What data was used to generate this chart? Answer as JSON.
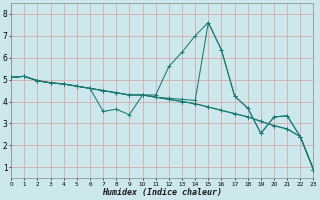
{
  "bg_color": "#cce8ec",
  "grid_color": "#b8d8dc",
  "line_color": "#1a7870",
  "xlabel": "Humidex (Indice chaleur)",
  "xlim": [
    0,
    23
  ],
  "ylim": [
    0.5,
    8.5
  ],
  "xtick_vals": [
    0,
    1,
    2,
    3,
    4,
    5,
    6,
    7,
    8,
    9,
    10,
    11,
    12,
    13,
    14,
    15,
    16,
    17,
    18,
    19,
    20,
    21,
    22,
    23
  ],
  "ytick_vals": [
    1,
    2,
    3,
    4,
    5,
    6,
    7,
    8
  ],
  "curve1_x": [
    0,
    1,
    2,
    3,
    4,
    5,
    6,
    7,
    8,
    9,
    10,
    11,
    12,
    13,
    14,
    15,
    16,
    17,
    18,
    19,
    20,
    21,
    22,
    23
  ],
  "curve1_y": [
    5.1,
    5.15,
    4.95,
    4.85,
    4.8,
    4.7,
    4.6,
    4.5,
    4.4,
    4.3,
    4.3,
    4.2,
    4.1,
    4.0,
    3.9,
    3.75,
    3.6,
    3.45,
    3.3,
    3.1,
    2.9,
    2.75,
    2.4,
    0.9
  ],
  "curve2_x": [
    0,
    1,
    2,
    3,
    4,
    5,
    6,
    7,
    8,
    9,
    10,
    11,
    12,
    13,
    14,
    15,
    16,
    17,
    18,
    19,
    20,
    21,
    22,
    23
  ],
  "curve2_y": [
    5.1,
    5.15,
    4.95,
    4.85,
    4.8,
    4.7,
    4.6,
    3.55,
    3.65,
    3.4,
    4.3,
    4.3,
    5.6,
    6.25,
    7.0,
    7.6,
    6.35,
    4.25,
    3.7,
    2.55,
    3.3,
    3.35,
    2.4,
    0.9
  ],
  "curve3_x": [
    0,
    1,
    2,
    3,
    4,
    5,
    6,
    7,
    8,
    9,
    10,
    11,
    12,
    13,
    14,
    15,
    16,
    17,
    18,
    19,
    20,
    21,
    22,
    23
  ],
  "curve3_y": [
    5.1,
    5.15,
    4.95,
    4.85,
    4.8,
    4.7,
    4.6,
    4.5,
    4.4,
    4.3,
    4.3,
    4.2,
    4.15,
    4.1,
    4.05,
    7.6,
    6.35,
    4.25,
    3.7,
    2.55,
    3.3,
    3.35,
    2.4,
    0.9
  ],
  "curve4_x": [
    0,
    1,
    2,
    3,
    4,
    5,
    6,
    7,
    8,
    9,
    10,
    11,
    12,
    13,
    14,
    15,
    16,
    17,
    18,
    19,
    20,
    21,
    22,
    23
  ],
  "curve4_y": [
    5.1,
    5.15,
    4.95,
    4.85,
    4.8,
    4.7,
    4.6,
    4.5,
    4.4,
    4.3,
    4.3,
    4.2,
    4.1,
    4.0,
    3.9,
    3.75,
    3.6,
    3.45,
    3.3,
    3.1,
    2.9,
    2.75,
    2.4,
    0.9
  ]
}
